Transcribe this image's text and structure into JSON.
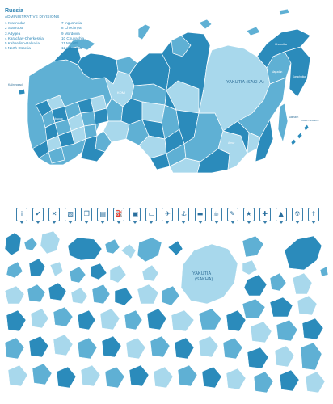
{
  "legend": {
    "title": "Russia",
    "subtitle": "ADMINISTRATIVE DIVISIONS",
    "left": [
      "1 Krasnodar",
      "2 Stavropol'",
      "3 Adygea",
      "4 Karachay-Cherkessia",
      "5 Kabardino-Balkaria",
      "6 North Ossetia"
    ],
    "right": [
      "7 Ingushetia",
      "8 Chechnya",
      "9 Mordovia",
      "10 Chuvashia",
      "11 Mari El",
      "12 Udmurtia"
    ]
  },
  "map_labels": {
    "yakutia_top": "YAKUTIA (SAKHA)",
    "yakutia_bottom_1": "YAKUTIA",
    "yakutia_bottom_2": "(SAKHA)",
    "komi": "KOMI",
    "kaliningrad": "Kaliningrad",
    "moscow": "Moscow",
    "chukotka": "Chukotka",
    "kamchatka": "Kamchatka",
    "magadan": "Magadan",
    "amur": "Amur",
    "sakhalin": "Sakhalin",
    "kuril": "KURIL ISLANDS"
  },
  "colors": {
    "dark": "#2b8bbb",
    "mid": "#5fb0d4",
    "light": "#a8d8ec",
    "pale": "#cfeaf6",
    "border": "#ffffff",
    "icon": "#3a7fab"
  },
  "toolbar": [
    {
      "name": "info-icon",
      "glyph": "i"
    },
    {
      "name": "check-icon",
      "glyph": "✔"
    },
    {
      "name": "close-icon",
      "glyph": "✕"
    },
    {
      "name": "picture-icon",
      "glyph": "▧"
    },
    {
      "name": "copy-icon",
      "glyph": "❐"
    },
    {
      "name": "document-icon",
      "glyph": "▤"
    },
    {
      "name": "gas-station-icon",
      "glyph": "⛽"
    },
    {
      "name": "train-icon",
      "glyph": "▣"
    },
    {
      "name": "bus-icon",
      "glyph": "▭"
    },
    {
      "name": "airplane-icon",
      "glyph": "✈"
    },
    {
      "name": "anchor-icon",
      "glyph": "⚓"
    },
    {
      "name": "bed-icon",
      "glyph": "▬"
    },
    {
      "name": "cup-icon",
      "glyph": "☕"
    },
    {
      "name": "pencil-icon",
      "glyph": "✎"
    },
    {
      "name": "star-icon",
      "glyph": "★"
    },
    {
      "name": "hospital-icon",
      "glyph": "✚"
    },
    {
      "name": "tent-icon",
      "glyph": "▲"
    },
    {
      "name": "radiation-icon",
      "glyph": "☢"
    },
    {
      "name": "cross-icon",
      "glyph": "✝"
    }
  ]
}
